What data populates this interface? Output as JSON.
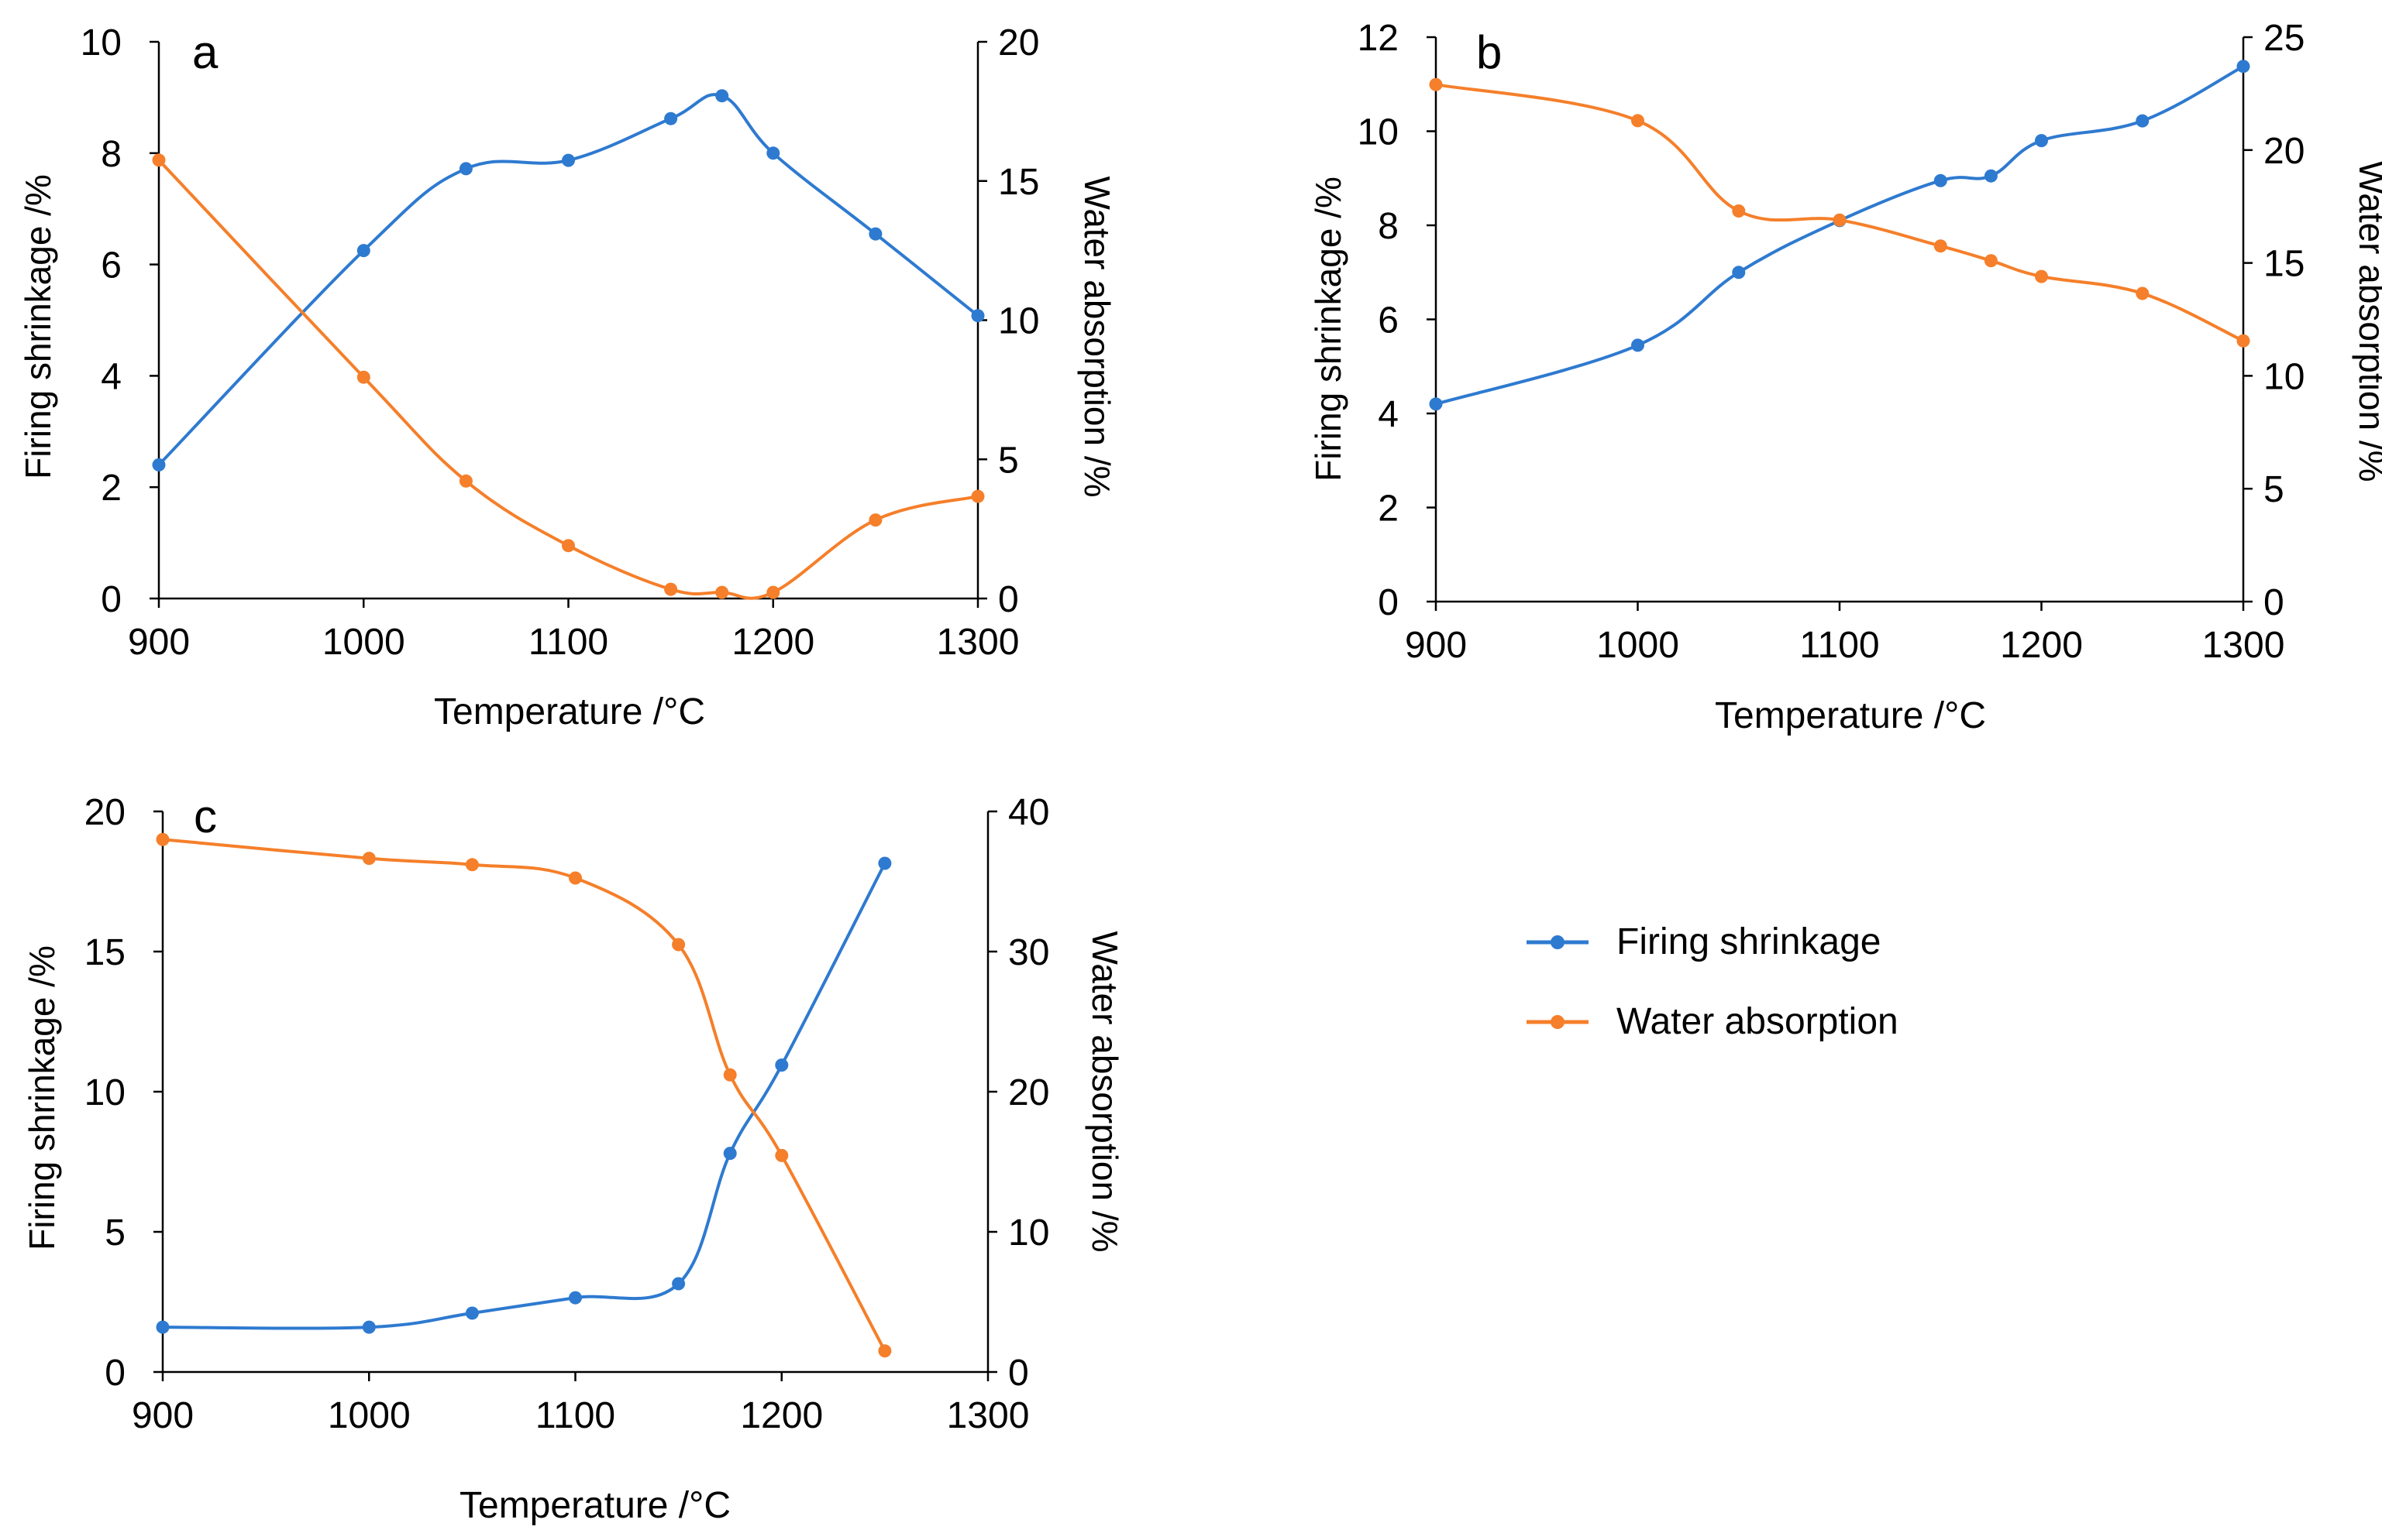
{
  "legend": {
    "items": [
      {
        "label": "Firing shrinkage",
        "color": "#2E7AD0"
      },
      {
        "label": "Water absorption",
        "color": "#F57F2A"
      }
    ]
  },
  "chart_data": [
    {
      "type": "line",
      "panel_label": "a",
      "xlabel": "Temperature /°C",
      "ylabel": "Firing shrinkage /%",
      "y2label": "Water absorption /%",
      "xlim": [
        900,
        1300
      ],
      "xticks": [
        900,
        1000,
        1100,
        1200,
        1300
      ],
      "ylim": [
        0,
        10
      ],
      "yticks": [
        0,
        2,
        4,
        6,
        8,
        10
      ],
      "y2lim": [
        0,
        20
      ],
      "y2ticks": [
        0,
        5,
        10,
        15,
        20
      ],
      "x": [
        900,
        1000,
        1050,
        1100,
        1150,
        1175,
        1200,
        1250,
        1300
      ],
      "series": [
        {
          "name": "Firing shrinkage",
          "axis": "left",
          "color": "#2E7AD0",
          "values": [
            2.4,
            6.25,
            7.72,
            7.87,
            8.62,
            9.03,
            8.0,
            6.55,
            5.08
          ]
        },
        {
          "name": "Water absorption",
          "axis": "right",
          "color": "#F57F2A",
          "values": [
            15.75,
            7.95,
            4.22,
            1.9,
            0.33,
            0.22,
            0.22,
            2.82,
            3.67
          ]
        }
      ]
    },
    {
      "type": "line",
      "panel_label": "b",
      "xlabel": "Temperature /°C",
      "ylabel": "Firing shrinkage /%",
      "y2label": "Water absorption /%",
      "xlim": [
        900,
        1300
      ],
      "xticks": [
        900,
        1000,
        1100,
        1200,
        1300
      ],
      "ylim": [
        0,
        12
      ],
      "yticks": [
        0,
        2,
        4,
        6,
        8,
        10,
        12
      ],
      "y2lim": [
        0,
        25
      ],
      "y2ticks": [
        0,
        5,
        10,
        15,
        20,
        25
      ],
      "x": [
        900,
        1000,
        1050,
        1100,
        1150,
        1175,
        1200,
        1250,
        1300
      ],
      "series": [
        {
          "name": "Firing shrinkage",
          "axis": "left",
          "color": "#2E7AD0",
          "values": [
            4.2,
            5.45,
            7.0,
            8.1,
            8.95,
            9.05,
            9.8,
            10.22,
            11.38
          ]
        },
        {
          "name": "Water absorption",
          "axis": "right",
          "color": "#F57F2A",
          "values": [
            22.9,
            21.3,
            17.3,
            16.9,
            15.75,
            15.1,
            14.4,
            13.65,
            11.55
          ]
        }
      ]
    },
    {
      "type": "line",
      "panel_label": "c",
      "xlabel": "Temperature /°C",
      "ylabel": "Firing shrinkage /%",
      "y2label": "Water absorption /%",
      "xlim": [
        900,
        1300
      ],
      "xticks": [
        900,
        1000,
        1100,
        1200,
        1300
      ],
      "ylim": [
        0,
        20
      ],
      "yticks": [
        0,
        5,
        10,
        15,
        20
      ],
      "y2lim": [
        0,
        40
      ],
      "y2ticks": [
        0,
        10,
        20,
        30,
        40
      ],
      "x": [
        900,
        1000,
        1050,
        1100,
        1150,
        1175,
        1200,
        1250
      ],
      "series": [
        {
          "name": "Firing shrinkage",
          "axis": "left",
          "color": "#2E7AD0",
          "values": [
            1.6,
            1.6,
            2.1,
            2.65,
            3.15,
            7.8,
            10.95,
            18.15
          ]
        },
        {
          "name": "Water absorption",
          "axis": "right",
          "color": "#F57F2A",
          "values": [
            38.0,
            36.65,
            36.2,
            35.25,
            30.5,
            21.2,
            15.45,
            1.5
          ]
        }
      ]
    }
  ]
}
